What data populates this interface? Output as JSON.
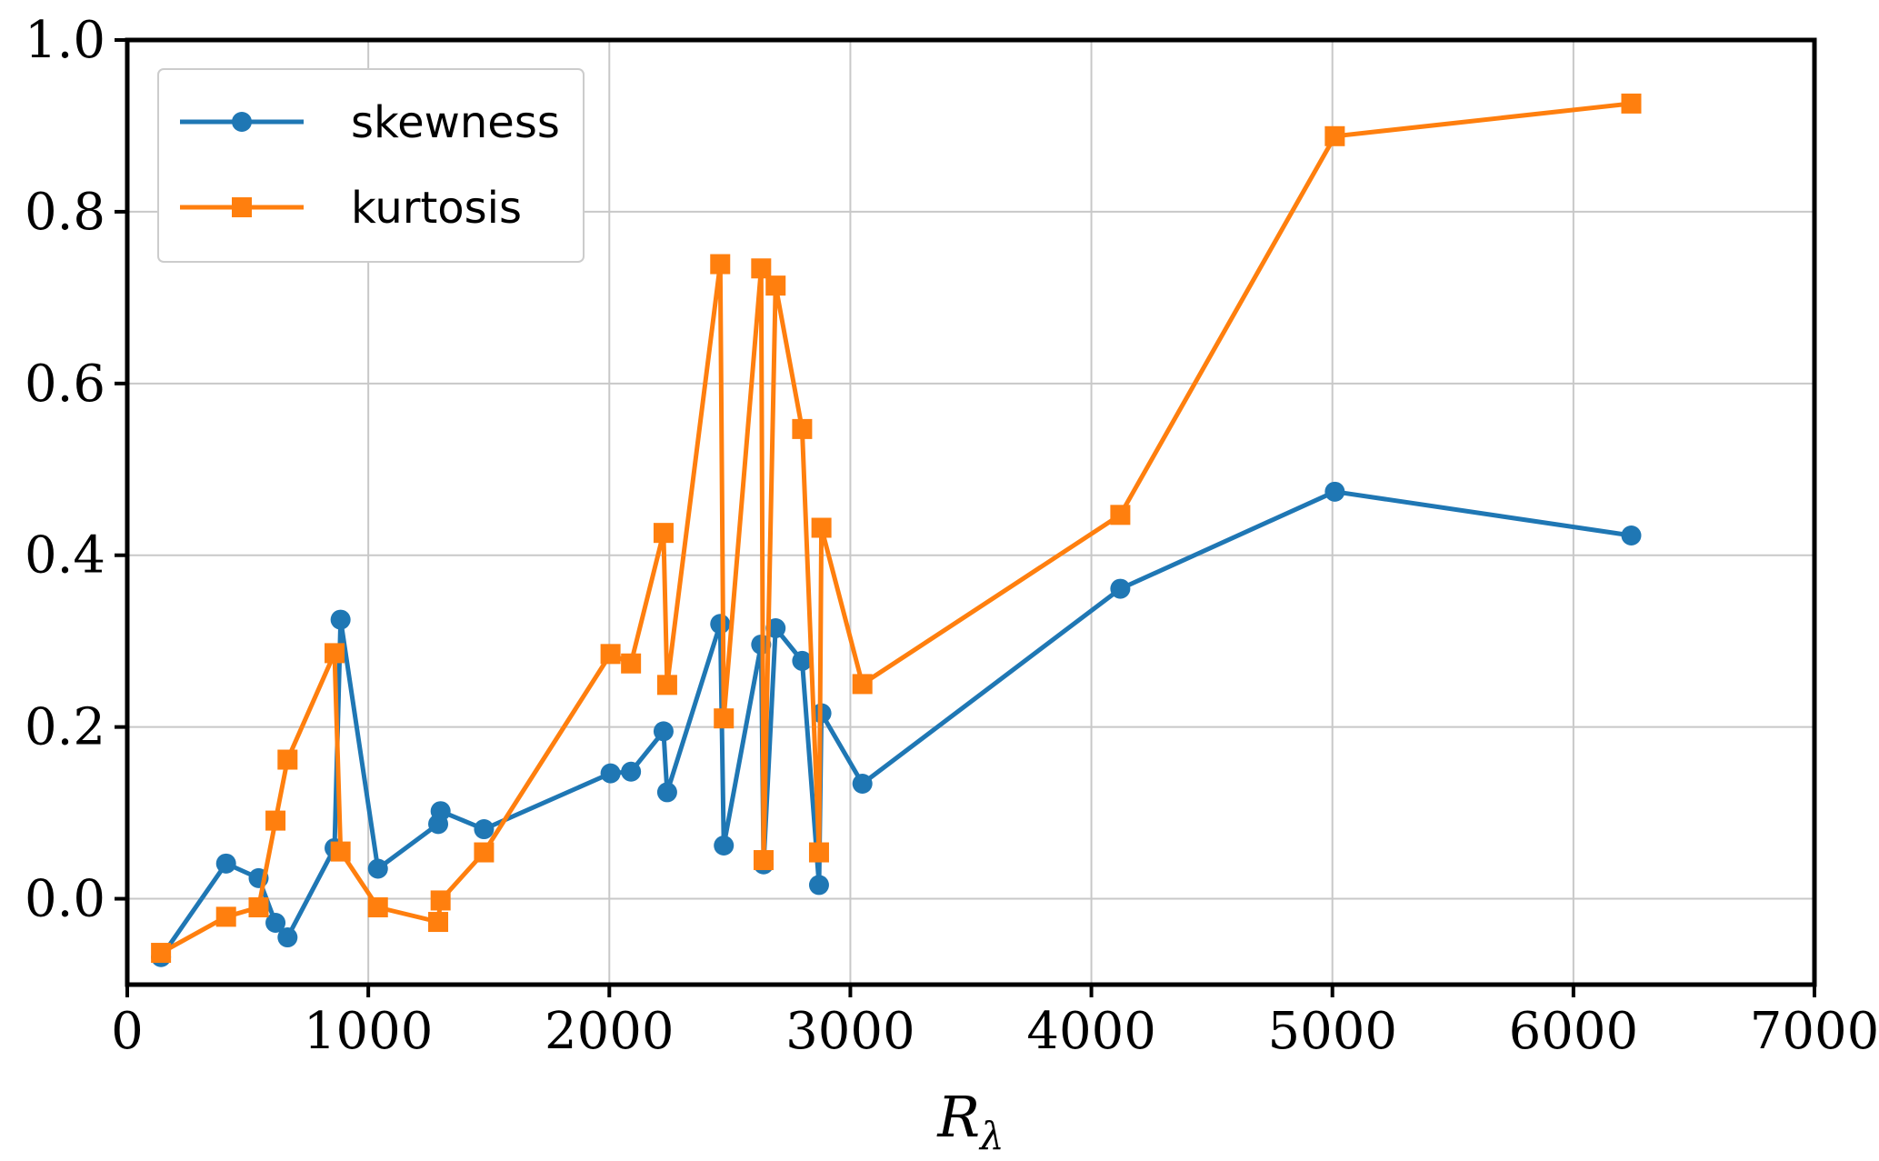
{
  "chart_data": {
    "type": "line",
    "title": "",
    "xlabel": "R",
    "xlabel_subscript": "λ",
    "ylabel": "",
    "xlim": [
      0,
      7000
    ],
    "ylim": [
      -0.1,
      1.0
    ],
    "xticks": [
      0,
      1000,
      2000,
      3000,
      4000,
      5000,
      6000,
      7000
    ],
    "yticks": [
      0.0,
      0.2,
      0.4,
      0.6,
      0.8,
      1.0
    ],
    "xtick_labels": [
      "0",
      "1000",
      "2000",
      "3000",
      "4000",
      "5000",
      "6000",
      "7000"
    ],
    "ytick_labels": [
      "0.0",
      "0.2",
      "0.4",
      "0.6",
      "0.8",
      "1.0"
    ],
    "grid": true,
    "legend_position": "top-left",
    "series": [
      {
        "name": "skewness",
        "color": "#1f77b4",
        "marker": "circle",
        "x": [
          140,
          410,
          545,
          615,
          665,
          860,
          885,
          1040,
          1290,
          1300,
          1480,
          2005,
          2090,
          2225,
          2240,
          2460,
          2475,
          2630,
          2640,
          2690,
          2800,
          2870,
          2880,
          3050,
          4120,
          5010,
          6240
        ],
        "y": [
          -0.068,
          0.041,
          0.024,
          -0.028,
          -0.045,
          0.059,
          0.325,
          0.035,
          0.087,
          0.102,
          0.081,
          0.146,
          0.148,
          0.195,
          0.124,
          0.32,
          0.062,
          0.296,
          0.04,
          0.315,
          0.277,
          0.016,
          0.216,
          0.134,
          0.361,
          0.474,
          0.423
        ]
      },
      {
        "name": "kurtosis",
        "color": "#ff7f0e",
        "marker": "square",
        "x": [
          140,
          410,
          545,
          615,
          665,
          860,
          885,
          1040,
          1290,
          1300,
          1480,
          2005,
          2090,
          2225,
          2240,
          2460,
          2475,
          2630,
          2640,
          2690,
          2800,
          2870,
          2880,
          3050,
          4120,
          5010,
          6240
        ],
        "y": [
          -0.063,
          -0.021,
          -0.01,
          0.091,
          0.162,
          0.286,
          0.055,
          -0.01,
          -0.027,
          -0.002,
          0.054,
          0.285,
          0.274,
          0.426,
          0.249,
          0.739,
          0.21,
          0.734,
          0.045,
          0.714,
          0.547,
          0.054,
          0.432,
          0.25,
          0.447,
          0.888,
          0.926
        ]
      }
    ]
  }
}
